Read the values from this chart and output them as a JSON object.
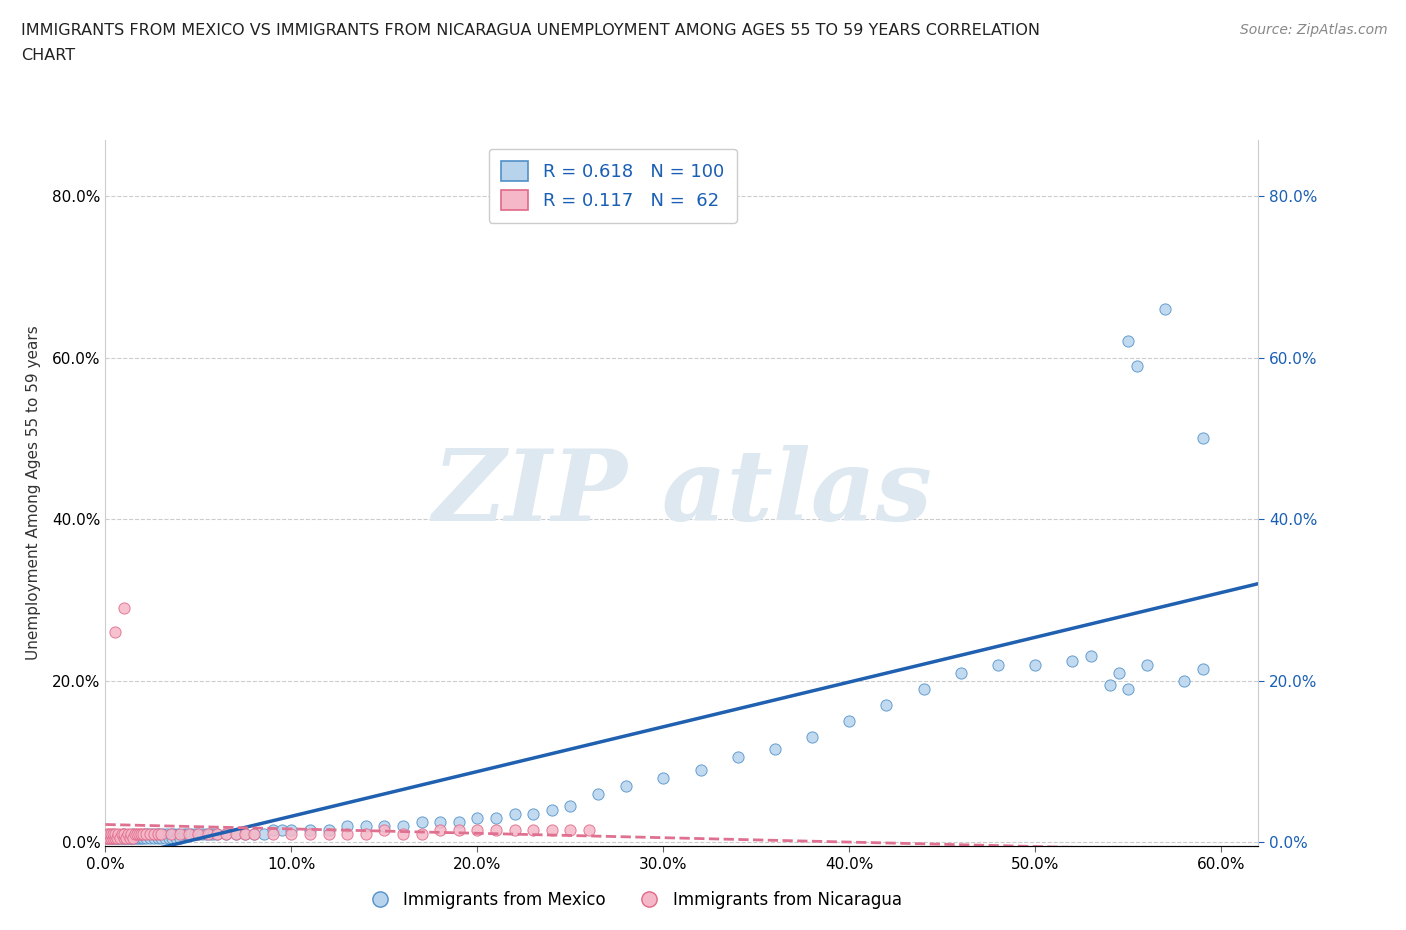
{
  "title_line1": "IMMIGRANTS FROM MEXICO VS IMMIGRANTS FROM NICARAGUA UNEMPLOYMENT AMONG AGES 55 TO 59 YEARS CORRELATION",
  "title_line2": "CHART",
  "source_text": "Source: ZipAtlas.com",
  "xlabel_mexico": "Immigrants from Mexico",
  "xlabel_nicaragua": "Immigrants from Nicaragua",
  "ylabel": "Unemployment Among Ages 55 to 59 years",
  "xlim": [
    0.0,
    0.62
  ],
  "ylim": [
    -0.005,
    0.87
  ],
  "xticks": [
    0.0,
    0.1,
    0.2,
    0.3,
    0.4,
    0.5,
    0.6
  ],
  "yticks": [
    0.0,
    0.2,
    0.4,
    0.6,
    0.8
  ],
  "ytick_labels": [
    "0.0%",
    "20.0%",
    "40.0%",
    "60.0%",
    "80.0%"
  ],
  "xtick_labels": [
    "0.0%",
    "10.0%",
    "20.0%",
    "30.0%",
    "40.0%",
    "50.0%",
    "60.0%"
  ],
  "mexico_face_color": "#b8d4ed",
  "mexico_edge_color": "#5090c8",
  "nicaragua_face_color": "#f5b8c8",
  "nicaragua_edge_color": "#e06888",
  "mexico_line_color": "#2060b0",
  "nicaragua_line_color": "#e07090",
  "text_color": "#333333",
  "text_blue": "#1a5fb4",
  "grid_color": "#cccccc",
  "background_color": "#ffffff",
  "watermark_color": "#dde8f0",
  "mexico_scatter_x": [
    0.001,
    0.002,
    0.003,
    0.004,
    0.005,
    0.006,
    0.007,
    0.008,
    0.009,
    0.01,
    0.01,
    0.011,
    0.012,
    0.013,
    0.014,
    0.015,
    0.015,
    0.016,
    0.017,
    0.018,
    0.019,
    0.02,
    0.021,
    0.022,
    0.023,
    0.024,
    0.025,
    0.026,
    0.027,
    0.028,
    0.029,
    0.03,
    0.031,
    0.032,
    0.033,
    0.034,
    0.035,
    0.036,
    0.037,
    0.038,
    0.039,
    0.04,
    0.042,
    0.044,
    0.046,
    0.048,
    0.05,
    0.052,
    0.054,
    0.056,
    0.058,
    0.06,
    0.065,
    0.07,
    0.075,
    0.08,
    0.085,
    0.09,
    0.095,
    0.1,
    0.11,
    0.12,
    0.13,
    0.14,
    0.15,
    0.16,
    0.17,
    0.18,
    0.19,
    0.2,
    0.21,
    0.22,
    0.23,
    0.24,
    0.25,
    0.265,
    0.28,
    0.3,
    0.32,
    0.34,
    0.36,
    0.38,
    0.4,
    0.42,
    0.44,
    0.46,
    0.48,
    0.5,
    0.52,
    0.53,
    0.54,
    0.545,
    0.55,
    0.56,
    0.58,
    0.59,
    0.55,
    0.555,
    0.57,
    0.59
  ],
  "mexico_scatter_y": [
    0.005,
    0.005,
    0.005,
    0.005,
    0.005,
    0.005,
    0.005,
    0.005,
    0.005,
    0.005,
    0.01,
    0.005,
    0.005,
    0.005,
    0.005,
    0.005,
    0.01,
    0.005,
    0.005,
    0.005,
    0.005,
    0.005,
    0.01,
    0.005,
    0.01,
    0.005,
    0.01,
    0.005,
    0.01,
    0.005,
    0.01,
    0.005,
    0.01,
    0.005,
    0.01,
    0.005,
    0.01,
    0.005,
    0.01,
    0.005,
    0.01,
    0.005,
    0.01,
    0.01,
    0.01,
    0.01,
    0.01,
    0.01,
    0.01,
    0.01,
    0.01,
    0.01,
    0.01,
    0.01,
    0.01,
    0.01,
    0.01,
    0.015,
    0.015,
    0.015,
    0.015,
    0.015,
    0.02,
    0.02,
    0.02,
    0.02,
    0.025,
    0.025,
    0.025,
    0.03,
    0.03,
    0.035,
    0.035,
    0.04,
    0.045,
    0.06,
    0.07,
    0.08,
    0.09,
    0.105,
    0.115,
    0.13,
    0.15,
    0.17,
    0.19,
    0.21,
    0.22,
    0.22,
    0.225,
    0.23,
    0.195,
    0.21,
    0.19,
    0.22,
    0.2,
    0.215,
    0.62,
    0.59,
    0.66,
    0.5
  ],
  "nicaragua_scatter_x": [
    0.0,
    0.001,
    0.001,
    0.002,
    0.002,
    0.003,
    0.003,
    0.004,
    0.004,
    0.005,
    0.005,
    0.006,
    0.007,
    0.008,
    0.009,
    0.01,
    0.01,
    0.011,
    0.012,
    0.013,
    0.014,
    0.015,
    0.016,
    0.017,
    0.018,
    0.019,
    0.02,
    0.022,
    0.024,
    0.026,
    0.028,
    0.03,
    0.035,
    0.04,
    0.045,
    0.05,
    0.055,
    0.06,
    0.065,
    0.07,
    0.075,
    0.08,
    0.09,
    0.1,
    0.11,
    0.12,
    0.13,
    0.14,
    0.15,
    0.16,
    0.17,
    0.18,
    0.19,
    0.2,
    0.21,
    0.22,
    0.23,
    0.24,
    0.25,
    0.26,
    0.01,
    0.005
  ],
  "nicaragua_scatter_y": [
    0.005,
    0.005,
    0.01,
    0.005,
    0.01,
    0.005,
    0.01,
    0.005,
    0.01,
    0.005,
    0.01,
    0.005,
    0.01,
    0.005,
    0.01,
    0.005,
    0.01,
    0.005,
    0.01,
    0.005,
    0.01,
    0.005,
    0.01,
    0.01,
    0.01,
    0.01,
    0.01,
    0.01,
    0.01,
    0.01,
    0.01,
    0.01,
    0.01,
    0.01,
    0.01,
    0.01,
    0.01,
    0.01,
    0.01,
    0.01,
    0.01,
    0.01,
    0.01,
    0.01,
    0.01,
    0.01,
    0.01,
    0.01,
    0.015,
    0.01,
    0.01,
    0.015,
    0.015,
    0.015,
    0.015,
    0.015,
    0.015,
    0.015,
    0.015,
    0.015,
    0.29,
    0.26
  ],
  "R_mexico": 0.618,
  "N_mexico": 100,
  "R_nicaragua": 0.117,
  "N_nicaragua": 62
}
